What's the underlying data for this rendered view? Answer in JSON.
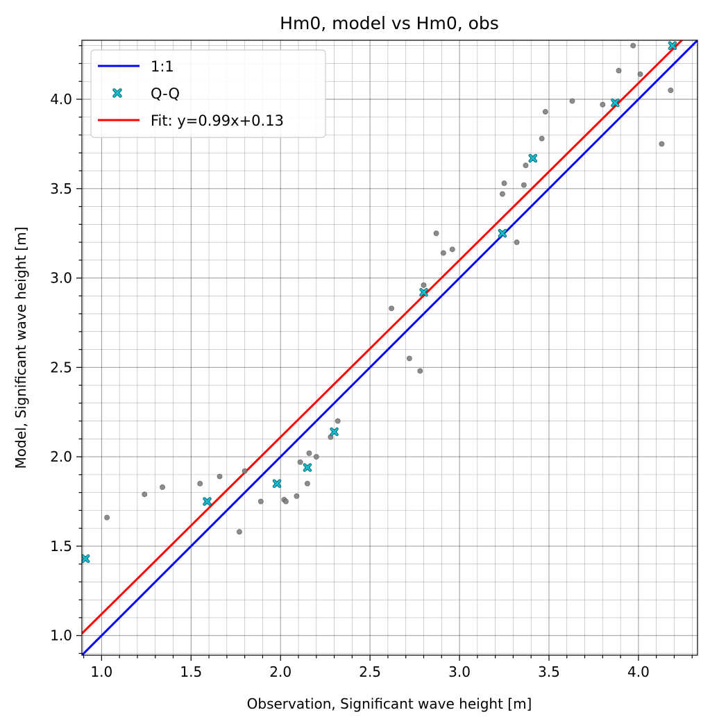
{
  "chart_data": {
    "type": "scatter",
    "title": "Hm0, model vs Hm0, obs",
    "xlabel": "Observation, Significant wave height [m]",
    "ylabel": "Model, Significant wave height [m]",
    "xlim": [
      0.89,
      4.33
    ],
    "ylim": [
      0.89,
      4.33
    ],
    "xticks": [
      1.0,
      1.5,
      2.0,
      2.5,
      3.0,
      3.5,
      4.0
    ],
    "yticks": [
      1.0,
      1.5,
      2.0,
      2.5,
      3.0,
      3.5,
      4.0
    ],
    "minor_step": 0.1,
    "grid": true,
    "legend_position": "top-left",
    "series": [
      {
        "name": "1:1",
        "kind": "line",
        "color": "#0000ff",
        "x": [
          0.89,
          4.33
        ],
        "y": [
          0.89,
          4.33
        ]
      },
      {
        "name": "Q-Q",
        "kind": "marker",
        "marker": "x",
        "color": "#17becf",
        "x": [
          0.91,
          1.59,
          1.98,
          2.15,
          2.3,
          2.8,
          3.24,
          3.41,
          3.87,
          4.19
        ],
        "y": [
          1.43,
          1.75,
          1.85,
          1.94,
          2.14,
          2.92,
          3.25,
          3.67,
          3.98,
          4.3
        ]
      },
      {
        "name": "Fit: y=0.99x+0.13",
        "kind": "line",
        "color": "#ff0000",
        "x": [
          0.89,
          4.33
        ],
        "y": [
          1.0111,
          4.4167
        ]
      },
      {
        "name": "",
        "kind": "scatter",
        "color": "#808080",
        "x": [
          0.91,
          1.03,
          1.24,
          1.34,
          1.55,
          1.59,
          1.66,
          1.77,
          1.8,
          1.89,
          1.98,
          2.02,
          2.03,
          2.09,
          2.11,
          2.15,
          2.15,
          2.16,
          2.2,
          2.28,
          2.3,
          2.32,
          2.62,
          2.72,
          2.78,
          2.8,
          2.8,
          2.87,
          2.91,
          2.96,
          3.24,
          3.24,
          3.25,
          3.32,
          3.36,
          3.37,
          3.41,
          3.46,
          3.48,
          3.63,
          3.8,
          3.87,
          3.89,
          3.97,
          4.01,
          4.13,
          4.18,
          4.19
        ],
        "y": [
          1.43,
          1.66,
          1.79,
          1.83,
          1.85,
          1.75,
          1.89,
          1.58,
          1.92,
          1.75,
          1.85,
          1.76,
          1.75,
          1.78,
          1.97,
          1.94,
          1.85,
          2.02,
          2.0,
          2.11,
          2.14,
          2.2,
          2.83,
          2.55,
          2.48,
          2.92,
          2.96,
          3.25,
          3.14,
          3.16,
          3.47,
          3.25,
          3.53,
          3.2,
          3.52,
          3.63,
          3.67,
          3.78,
          3.93,
          3.99,
          3.97,
          3.98,
          4.16,
          4.3,
          4.14,
          3.75,
          4.05,
          4.3
        ]
      }
    ]
  }
}
